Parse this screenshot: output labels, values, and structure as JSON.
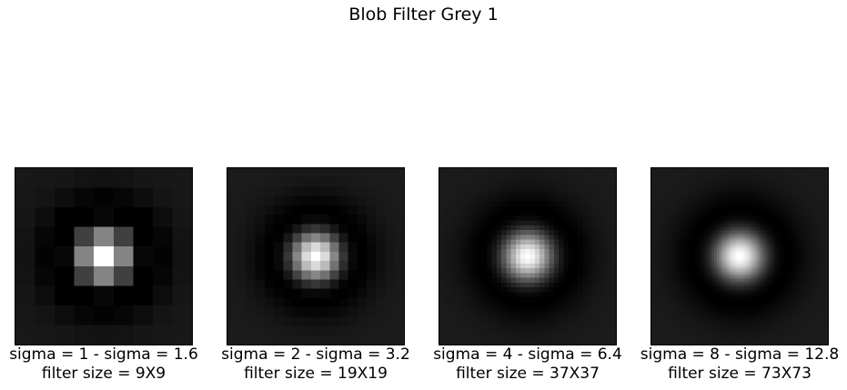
{
  "figure": {
    "title": "Blob Filter Grey 1"
  },
  "panels": [
    {
      "caption_line1": "sigma = 1 - sigma = 1.6",
      "caption_line2": "filter size = 9X9",
      "sigma1": 1,
      "sigma2": 1.6,
      "size": 9
    },
    {
      "caption_line1": "sigma = 2 - sigma = 3.2",
      "caption_line2": "filter size = 19X19",
      "sigma1": 2,
      "sigma2": 3.2,
      "size": 19
    },
    {
      "caption_line1": "sigma = 4 - sigma = 6.4",
      "caption_line2": "filter size = 37X37",
      "sigma1": 4,
      "sigma2": 6.4,
      "size": 37
    },
    {
      "caption_line1": "sigma = 8 - sigma = 12.8",
      "caption_line2": "filter size = 73X73",
      "sigma1": 8,
      "sigma2": 12.8,
      "size": 73
    }
  ],
  "colormap": "grey"
}
